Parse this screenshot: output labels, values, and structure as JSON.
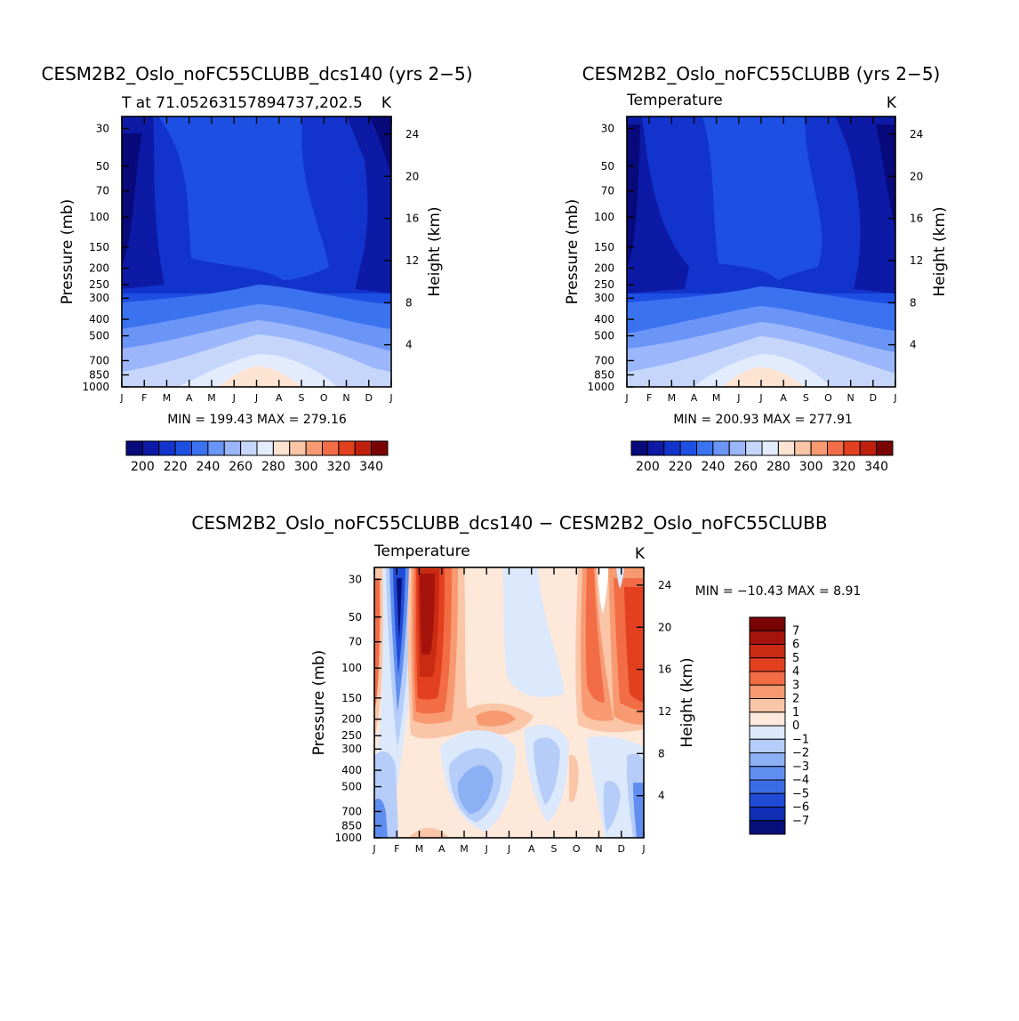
{
  "chart_data": [
    {
      "type": "heatmap",
      "title": "CESM2B2_Oslo_noFC55CLUBB_dcs140 (yrs 2−5)",
      "subtitle_left": "T at 71.05263157894737,202.5",
      "subtitle_right": "K",
      "ylabel": "Pressure (mb)",
      "y2label": "Height (km)",
      "x_ticks": [
        "J",
        "F",
        "M",
        "A",
        "M",
        "J",
        "J",
        "A",
        "S",
        "O",
        "N",
        "D",
        "J"
      ],
      "pressure_ticks": [
        "30",
        "50",
        "70",
        "100",
        "150",
        "200",
        "250",
        "300",
        "400",
        "500",
        "700",
        "850",
        "1000"
      ],
      "height_ticks": [
        "24",
        "20",
        "16",
        "12",
        "8",
        "4"
      ],
      "stats": "MIN = 199.43  MAX = 279.16",
      "colorbar": {
        "labels": [
          "200",
          "220",
          "240",
          "260",
          "280",
          "300",
          "320",
          "340"
        ]
      }
    },
    {
      "type": "heatmap",
      "title": "CESM2B2_Oslo_noFC55CLUBB (yrs 2−5)",
      "subtitle_left": "Temperature",
      "subtitle_right": "K",
      "ylabel": "Pressure (mb)",
      "y2label": "Height (km)",
      "x_ticks": [
        "J",
        "F",
        "M",
        "A",
        "M",
        "J",
        "J",
        "A",
        "S",
        "O",
        "N",
        "D",
        "J"
      ],
      "pressure_ticks": [
        "30",
        "50",
        "70",
        "100",
        "150",
        "200",
        "250",
        "300",
        "400",
        "500",
        "700",
        "850",
        "1000"
      ],
      "height_ticks": [
        "24",
        "20",
        "16",
        "12",
        "8",
        "4"
      ],
      "stats": "MIN = 200.93  MAX = 277.91",
      "colorbar": {
        "labels": [
          "200",
          "220",
          "240",
          "260",
          "280",
          "300",
          "320",
          "340"
        ]
      }
    },
    {
      "type": "heatmap",
      "title": "CESM2B2_Oslo_noFC55CLUBB_dcs140 − CESM2B2_Oslo_noFC55CLUBB",
      "subtitle_left": "Temperature",
      "subtitle_right": "K",
      "ylabel": "Pressure (mb)",
      "y2label": "Height (km)",
      "x_ticks": [
        "J",
        "F",
        "M",
        "A",
        "M",
        "J",
        "J",
        "A",
        "S",
        "O",
        "N",
        "D",
        "J"
      ],
      "pressure_ticks": [
        "30",
        "50",
        "70",
        "100",
        "150",
        "200",
        "250",
        "300",
        "400",
        "500",
        "700",
        "850",
        "1000"
      ],
      "height_ticks": [
        "24",
        "20",
        "16",
        "12",
        "8",
        "4"
      ],
      "stats": "MIN = −10.43  MAX =    8.91",
      "colorbar": {
        "labels": [
          "7",
          "6",
          "5",
          "4",
          "3",
          "2",
          "1",
          "0",
          "−1",
          "−2",
          "−3",
          "−4",
          "−5",
          "−6",
          "−7"
        ]
      }
    }
  ],
  "palettes": {
    "abs": [
      "#08097a",
      "#0c1aa6",
      "#1334cc",
      "#1d4fe3",
      "#3b72f0",
      "#6a95f7",
      "#9bb6fa",
      "#c6d6fb",
      "#e3ecfd",
      "#fde3d2",
      "#fbc5a7",
      "#f79a72",
      "#f26c45",
      "#e3401f",
      "#c11f0e",
      "#7a0404"
    ],
    "diff": [
      "#7a0404",
      "#a5130c",
      "#c92a12",
      "#e3401f",
      "#f26c45",
      "#f79a72",
      "#fbc5a7",
      "#fde8da",
      "#dce8fb",
      "#b5cdf8",
      "#8cb0f4",
      "#5f8ef0",
      "#3a6ce6",
      "#1f4bd6",
      "#0e2fb3",
      "#07107a"
    ]
  },
  "axes_colors": {
    "stroke": "#000000"
  }
}
